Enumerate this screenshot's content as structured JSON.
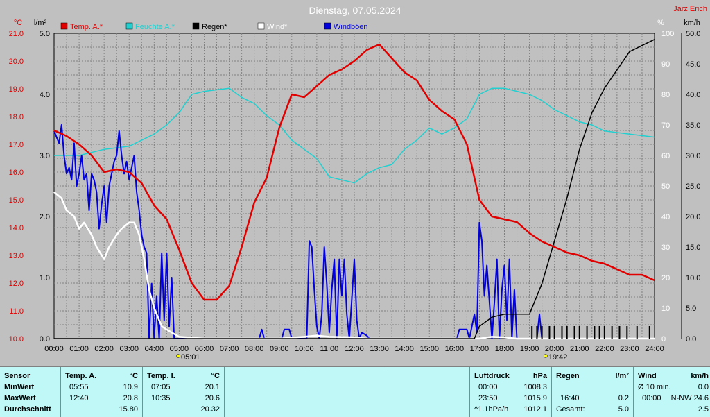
{
  "chart_data": {
    "type": "line",
    "title": "Dienstag, 07.05.2024",
    "author": "Jarz Erich",
    "legend": [
      "Temp. A.*",
      "Feuchte A.*",
      "Regen*",
      "Wind*",
      "Windböen"
    ],
    "axes": {
      "temp": {
        "unit": "°C",
        "min": 10.0,
        "max": 21.0,
        "ticks": [
          "10.0",
          "11.0",
          "12.0",
          "13.0",
          "14.0",
          "15.0",
          "16.0",
          "17.0",
          "18.0",
          "19.0",
          "20.0",
          "21.0"
        ]
      },
      "rain": {
        "unit": "l/m²",
        "min": 0,
        "max": 5,
        "ticks": [
          "0.0",
          "1.0",
          "2.0",
          "3.0",
          "4.0",
          "5.0"
        ]
      },
      "hum": {
        "unit": "%",
        "min": 0,
        "max": 100,
        "ticks": [
          "0",
          "10",
          "20",
          "30",
          "40",
          "50",
          "60",
          "70",
          "80",
          "90",
          "100"
        ]
      },
      "wind": {
        "unit": "km/h",
        "min": 0,
        "max": 50,
        "ticks": [
          "0.0",
          "5.0",
          "10.0",
          "15.0",
          "20.0",
          "25.0",
          "30.0",
          "35.0",
          "40.0",
          "45.0",
          "50.0"
        ]
      }
    },
    "x_ticks": [
      "00:00",
      "01:00",
      "02:00",
      "03:00",
      "04:00",
      "05:00",
      "06:00",
      "07:00",
      "08:00",
      "09:00",
      "10:00",
      "11:00",
      "12:00",
      "13:00",
      "14:00",
      "15:00",
      "16:00",
      "17:00",
      "18:00",
      "19:00",
      "20:00",
      "21:00",
      "22:00",
      "23:00",
      "24:00"
    ],
    "sunrise": "05:01",
    "sunset": "19:42",
    "series": [
      {
        "name": "Temp. A.*",
        "color": "#e00000",
        "axis": "temp",
        "points": [
          [
            0,
            17.5
          ],
          [
            0.5,
            17.3
          ],
          [
            1,
            17.0
          ],
          [
            1.5,
            16.6
          ],
          [
            2,
            16.0
          ],
          [
            2.5,
            16.1
          ],
          [
            3,
            16.0
          ],
          [
            3.5,
            15.6
          ],
          [
            4,
            14.8
          ],
          [
            4.5,
            14.3
          ],
          [
            5,
            13.2
          ],
          [
            5.5,
            12.0
          ],
          [
            6,
            11.4
          ],
          [
            6.5,
            11.4
          ],
          [
            7,
            11.9
          ],
          [
            7.5,
            13.3
          ],
          [
            8,
            14.9
          ],
          [
            8.5,
            15.8
          ],
          [
            9,
            17.6
          ],
          [
            9.5,
            18.8
          ],
          [
            10,
            18.7
          ],
          [
            10.5,
            19.1
          ],
          [
            11,
            19.5
          ],
          [
            11.5,
            19.7
          ],
          [
            12,
            20.0
          ],
          [
            12.5,
            20.4
          ],
          [
            13,
            20.6
          ],
          [
            13.5,
            20.1
          ],
          [
            14,
            19.6
          ],
          [
            14.5,
            19.3
          ],
          [
            15,
            18.6
          ],
          [
            15.5,
            18.2
          ],
          [
            16,
            17.9
          ],
          [
            16.5,
            17.0
          ],
          [
            17,
            15.0
          ],
          [
            17.5,
            14.4
          ],
          [
            18,
            14.3
          ],
          [
            18.5,
            14.2
          ],
          [
            19,
            13.8
          ],
          [
            19.5,
            13.5
          ],
          [
            20,
            13.3
          ],
          [
            20.5,
            13.1
          ],
          [
            21,
            13.0
          ],
          [
            21.5,
            12.8
          ],
          [
            22,
            12.7
          ],
          [
            22.5,
            12.5
          ],
          [
            23,
            12.3
          ],
          [
            23.5,
            12.3
          ],
          [
            24,
            12.1
          ]
        ]
      },
      {
        "name": "Feuchte A.*",
        "color": "#20d0d0",
        "axis": "hum",
        "points": [
          [
            0,
            60
          ],
          [
            1,
            60
          ],
          [
            2,
            62
          ],
          [
            3,
            63
          ],
          [
            4,
            67
          ],
          [
            4.5,
            70
          ],
          [
            5,
            74
          ],
          [
            5.5,
            80
          ],
          [
            6,
            81
          ],
          [
            7,
            82
          ],
          [
            7.5,
            79
          ],
          [
            8,
            77
          ],
          [
            8.5,
            73
          ],
          [
            9,
            70
          ],
          [
            9.5,
            65
          ],
          [
            10,
            62
          ],
          [
            10.5,
            59
          ],
          [
            11,
            53
          ],
          [
            12,
            51
          ],
          [
            12.5,
            54
          ],
          [
            13,
            56
          ],
          [
            13.5,
            57
          ],
          [
            14,
            62
          ],
          [
            14.5,
            65
          ],
          [
            15,
            69
          ],
          [
            15.5,
            67
          ],
          [
            16,
            69
          ],
          [
            16.5,
            72
          ],
          [
            17,
            80
          ],
          [
            17.5,
            82
          ],
          [
            18,
            82
          ],
          [
            18.5,
            81
          ],
          [
            19,
            80
          ],
          [
            19.5,
            78
          ],
          [
            20,
            75
          ],
          [
            21,
            71
          ],
          [
            21.5,
            70
          ],
          [
            22,
            68
          ],
          [
            23,
            67
          ],
          [
            24,
            66
          ]
        ]
      },
      {
        "name": "Regen*",
        "color": "#000000",
        "axis": "rain",
        "points": [
          [
            0,
            0
          ],
          [
            16.8,
            0
          ],
          [
            17.0,
            0.2
          ],
          [
            17.5,
            0.35
          ],
          [
            18,
            0.4
          ],
          [
            19,
            0.4
          ],
          [
            19.5,
            0.9
          ],
          [
            20,
            1.6
          ],
          [
            20.5,
            2.3
          ],
          [
            21,
            3.1
          ],
          [
            21.5,
            3.7
          ],
          [
            22,
            4.1
          ],
          [
            22.5,
            4.4
          ],
          [
            23,
            4.7
          ],
          [
            23.5,
            4.8
          ],
          [
            24,
            4.9
          ]
        ]
      },
      {
        "name": "Wind*",
        "color": "#ffffff",
        "axis": "wind",
        "points": [
          [
            0,
            24
          ],
          [
            0.3,
            23
          ],
          [
            0.5,
            21
          ],
          [
            0.8,
            20
          ],
          [
            1,
            18
          ],
          [
            1.2,
            19
          ],
          [
            1.5,
            17
          ],
          [
            1.7,
            15
          ],
          [
            2,
            13
          ],
          [
            2.2,
            15
          ],
          [
            2.5,
            17
          ],
          [
            2.7,
            18
          ],
          [
            3,
            19
          ],
          [
            3.2,
            19
          ],
          [
            3.4,
            17
          ],
          [
            3.6,
            13
          ],
          [
            3.8,
            8
          ],
          [
            4,
            5
          ],
          [
            4.3,
            2
          ],
          [
            4.7,
            1
          ],
          [
            5,
            0.3
          ],
          [
            6,
            0
          ],
          [
            9,
            0
          ],
          [
            10,
            0.3
          ],
          [
            10.5,
            0.5
          ],
          [
            11,
            0.3
          ],
          [
            12,
            0.2
          ],
          [
            12.5,
            0
          ],
          [
            17,
            0
          ],
          [
            17.5,
            0.3
          ],
          [
            18,
            0.2
          ],
          [
            18.5,
            0
          ],
          [
            24,
            0
          ]
        ]
      },
      {
        "name": "Windböen",
        "color": "#0000e0",
        "axis": "wind",
        "points": [
          [
            0,
            34
          ],
          [
            0.2,
            32
          ],
          [
            0.3,
            35
          ],
          [
            0.4,
            30
          ],
          [
            0.5,
            27
          ],
          [
            0.6,
            28
          ],
          [
            0.7,
            26
          ],
          [
            0.8,
            32
          ],
          [
            0.9,
            25
          ],
          [
            1,
            27
          ],
          [
            1.1,
            30
          ],
          [
            1.2,
            26
          ],
          [
            1.3,
            27
          ],
          [
            1.4,
            21
          ],
          [
            1.5,
            27
          ],
          [
            1.6,
            26
          ],
          [
            1.7,
            24
          ],
          [
            1.8,
            18
          ],
          [
            1.9,
            22
          ],
          [
            2,
            25
          ],
          [
            2.1,
            19
          ],
          [
            2.2,
            25
          ],
          [
            2.3,
            27
          ],
          [
            2.4,
            29
          ],
          [
            2.5,
            30
          ],
          [
            2.6,
            34
          ],
          [
            2.7,
            30
          ],
          [
            2.8,
            27
          ],
          [
            2.9,
            29
          ],
          [
            3,
            26
          ],
          [
            3.1,
            28
          ],
          [
            3.2,
            30
          ],
          [
            3.3,
            24
          ],
          [
            3.4,
            21
          ],
          [
            3.5,
            17
          ],
          [
            3.6,
            15
          ],
          [
            3.7,
            14
          ],
          [
            3.8,
            0
          ],
          [
            3.9,
            9
          ],
          [
            4,
            0
          ],
          [
            4.1,
            7
          ],
          [
            4.2,
            0
          ],
          [
            4.3,
            14
          ],
          [
            4.4,
            3
          ],
          [
            4.5,
            14
          ],
          [
            4.6,
            2
          ],
          [
            4.7,
            10
          ],
          [
            4.8,
            0
          ],
          [
            8.2,
            0
          ],
          [
            8.3,
            1.5
          ],
          [
            8.4,
            0
          ],
          [
            9.1,
            0
          ],
          [
            9.2,
            1.5
          ],
          [
            9.4,
            1.5
          ],
          [
            9.5,
            0
          ],
          [
            10.1,
            0
          ],
          [
            10.2,
            16
          ],
          [
            10.3,
            15
          ],
          [
            10.4,
            8
          ],
          [
            10.5,
            2
          ],
          [
            10.6,
            0
          ],
          [
            10.7,
            4
          ],
          [
            10.8,
            15
          ],
          [
            10.9,
            9
          ],
          [
            11,
            1
          ],
          [
            11.1,
            8
          ],
          [
            11.2,
            13
          ],
          [
            11.3,
            0
          ],
          [
            11.4,
            13
          ],
          [
            11.5,
            7
          ],
          [
            11.6,
            13
          ],
          [
            11.7,
            4
          ],
          [
            11.8,
            0
          ],
          [
            12,
            13
          ],
          [
            12.1,
            3
          ],
          [
            12.2,
            0
          ],
          [
            12.3,
            1
          ],
          [
            12.5,
            0.5
          ],
          [
            12.6,
            0
          ],
          [
            16.1,
            0
          ],
          [
            16.2,
            1.5
          ],
          [
            16.5,
            1.5
          ],
          [
            16.6,
            0
          ],
          [
            16.8,
            4
          ],
          [
            16.9,
            1
          ],
          [
            17.0,
            19
          ],
          [
            17.1,
            16
          ],
          [
            17.2,
            7
          ],
          [
            17.3,
            12
          ],
          [
            17.4,
            6
          ],
          [
            17.5,
            0
          ],
          [
            17.6,
            6
          ],
          [
            17.7,
            13
          ],
          [
            17.8,
            0
          ],
          [
            17.9,
            8
          ],
          [
            18.0,
            12
          ],
          [
            18.1,
            3
          ],
          [
            18.2,
            13
          ],
          [
            18.3,
            0
          ],
          [
            18.4,
            8
          ],
          [
            18.5,
            0
          ],
          [
            19.3,
            0
          ],
          [
            19.4,
            4
          ],
          [
            19.5,
            0
          ],
          [
            24,
            0
          ]
        ]
      }
    ],
    "rain_ticks": [
      19.1,
      19.3,
      19.5,
      19.8,
      20.0,
      20.3,
      20.5,
      20.8,
      21.0,
      21.3,
      21.6,
      21.8,
      22.0,
      22.3,
      22.6,
      22.9,
      23.3,
      23.8
    ]
  },
  "stats": {
    "sensor": {
      "header": "Sensor",
      "rows": [
        "MinWert",
        "MaxWert",
        "Durchschnitt"
      ]
    },
    "temp_a": {
      "header": "Temp. A.",
      "unit": "°C",
      "rows": [
        [
          "05:55",
          "10.9"
        ],
        [
          "12:40",
          "20.8"
        ],
        [
          "",
          "15.80"
        ]
      ]
    },
    "temp_i": {
      "header": "Temp. I.",
      "unit": "°C",
      "rows": [
        [
          "07:05",
          "20.1"
        ],
        [
          "10:35",
          "20.6"
        ],
        [
          "",
          "20.32"
        ]
      ]
    },
    "luftdruck": {
      "header": "Luftdruck",
      "unit": "hPa",
      "rows": [
        [
          "00:00",
          "1008.3"
        ],
        [
          "23:50",
          "1015.9"
        ],
        [
          "^1.1hPa/h",
          "1012.1"
        ]
      ]
    },
    "regen": {
      "header": "Regen",
      "unit": "l/m²",
      "rows": [
        [
          "",
          ""
        ],
        [
          "16:40",
          "0.2"
        ],
        [
          "Gesamt:",
          "5.0"
        ]
      ]
    },
    "wind": {
      "header": "Wind",
      "unit": "km/h",
      "rows": [
        [
          "Ø 10 min.",
          "0.0"
        ],
        [
          "00:00",
          "N-NW 24.6"
        ],
        [
          "",
          "2.5"
        ]
      ]
    }
  }
}
